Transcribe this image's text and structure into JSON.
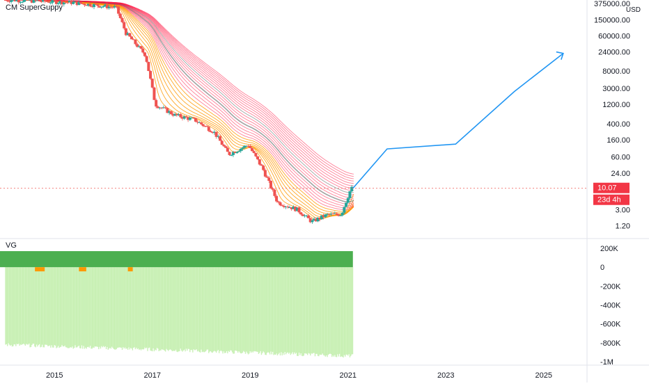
{
  "indicator_main": "CM SuperGuppy",
  "indicator_sub": "VG",
  "currency": "USD",
  "price_badge": {
    "value": "10.07",
    "countdown": "23d 4h",
    "color": "#f23645"
  },
  "colors": {
    "up": "#26a69a",
    "down": "#ef5350",
    "projection": "#2196f3",
    "guppy_fast": "#ff9800",
    "guppy_slow": "#ff1744",
    "vg_green": "#4caf50",
    "vg_light": "#c8f0b4",
    "vg_orange": "#ff9800"
  },
  "chart_data": [
    {
      "type": "line",
      "title": "CM SuperGuppy",
      "scale": "log",
      "ylabel": "USD",
      "y_ticks": [
        "375000.00",
        "150000.00",
        "60000.00",
        "24000.00",
        "8000.00",
        "3000.00",
        "1200.00",
        "400.00",
        "160.00",
        "60.00",
        "24.00",
        "3.00",
        "1.20"
      ],
      "x_ticks": [
        "2015",
        "2017",
        "2019",
        "2021",
        "2023",
        "2025"
      ],
      "series": [
        {
          "x": [
            2014.2,
            2015.4,
            2016.3,
            2016.5,
            2016.9,
            2017.1,
            2017.5,
            2017.9,
            2018.3,
            2018.6,
            2019.0,
            2019.3,
            2019.6,
            2020.0,
            2020.3,
            2020.6,
            2020.9,
            2021.1
          ],
          "y": [
            460000,
            400000,
            300000,
            70000,
            20000,
            1200,
            650,
            500,
            250,
            70,
            120,
            30,
            4.5,
            3.0,
            1.5,
            2.2,
            2.3,
            10.07
          ]
        },
        {
          "x": [
            2021.1,
            2021.8,
            2023.2,
            2024.4,
            2025.4
          ],
          "y": [
            10.07,
            95,
            125,
            2500,
            22000
          ]
        }
      ]
    },
    {
      "type": "bar",
      "title": "VG",
      "y_ticks": [
        "200K",
        "0",
        "-200K",
        "-400K",
        "-600K",
        "-800K",
        "-1M"
      ],
      "ylim": [
        -1000000,
        200000
      ]
    }
  ]
}
